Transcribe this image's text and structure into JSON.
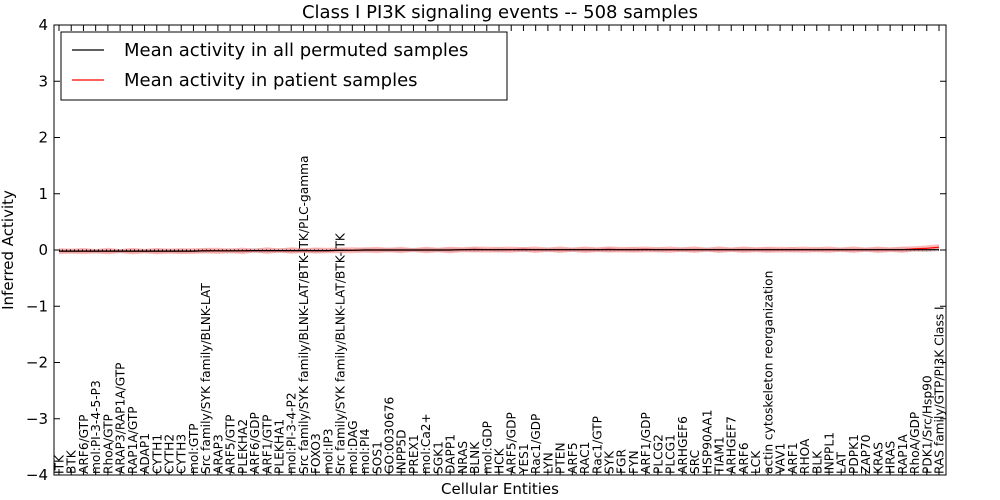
{
  "chart_data": {
    "type": "line",
    "title": "Class I PI3K signaling events -- 508 samples",
    "xlabel": "Cellular Entities",
    "ylabel": "Inferred Activity",
    "ylim": [
      -4,
      4
    ],
    "yticks": [
      "−4",
      "−3",
      "−2",
      "−1",
      "0",
      "1",
      "2",
      "3",
      "4"
    ],
    "ytick_values": [
      -4,
      -3,
      -2,
      -1,
      0,
      1,
      2,
      3,
      4
    ],
    "legend_position": "top-left",
    "categories": [
      "ITK",
      "BTK",
      "ARF6/GTP",
      "mol:PI-3-4-5-P3",
      "RhoA/GTP",
      "ARAP3/RAP1A/GTP",
      "RAP1A/GTP",
      "ADAP1",
      "CYTH1",
      "CYTH2",
      "CYTH3",
      "mol:GTP",
      "Src family/SYK family/BLNK-LAT",
      "ARAP3",
      "ARF5/GTP",
      "PLEKHA2",
      "ARF6/GDP",
      "ARF1/GTP",
      "PLEKHA1",
      "mol:PI-3-4-P2",
      "Src family/SYK family/BLNK-LAT/BTK-ITK/PLC-gamma",
      "FOXO3",
      "mol:IP3",
      "Src family/SYK family/BLNK-LAT/BTK-ITK",
      "mol:DAG",
      "mol:PI4",
      "SOS1",
      "GO:0030676",
      "INPP5D",
      "PREX1",
      "mol:Ca2+",
      "SGK1",
      "DAPP1",
      "NRAS",
      "BLNK",
      "mol:GDP",
      "HCK",
      "ARF5/GDP",
      "YES1",
      "Rac1/GDP",
      "LYN",
      "PTEN",
      "ARF5",
      "RAC1",
      "Rac1/GTP",
      "SYK",
      "FGR",
      "FYN",
      "ARF1/GDP",
      "PLCG2",
      "PLCG1",
      "ARHGEF6",
      "SRC",
      "HSP90AA1",
      "TIAM1",
      "ARHGEF7",
      "ARF6",
      "LCK",
      "actin cytoskeleton reorganization",
      "VAV1",
      "ARF1",
      "RHOA",
      "BLK",
      "INPPL1",
      "LAT",
      "PDPK1",
      "ZAP70",
      "KRAS",
      "HRAS",
      "RAP1A",
      "RhoA/GDP",
      "PDK1/Src/Hsp90",
      "RAS family/GTP/PI3K Class I"
    ],
    "series": [
      {
        "name": "Mean activity in all permuted samples",
        "color": "#000000",
        "values": [
          -0.02,
          -0.02,
          -0.02,
          -0.02,
          -0.02,
          -0.02,
          -0.02,
          -0.02,
          -0.02,
          -0.02,
          -0.02,
          -0.02,
          -0.015,
          -0.015,
          -0.015,
          -0.015,
          -0.01,
          -0.01,
          -0.01,
          -0.01,
          -0.01,
          -0.01,
          -0.01,
          -0.005,
          -0.005,
          0,
          0,
          0,
          0,
          0,
          0,
          0,
          0,
          0.005,
          0.005,
          0.005,
          0.005,
          0.005,
          0.005,
          0.005,
          0.005,
          0.005,
          0.005,
          0.005,
          0.005,
          0.005,
          0.005,
          0.005,
          0.005,
          0.005,
          0.005,
          0.005,
          0.005,
          0.005,
          0.005,
          0.005,
          0.005,
          0.005,
          0.005,
          0.005,
          0.005,
          0.005,
          0.005,
          0.005,
          0.005,
          0.005,
          0.005,
          0.005,
          0.005,
          0.005,
          0.005,
          0.005,
          0.005
        ]
      },
      {
        "name": "Mean activity in patient samples",
        "color": "#ff0000",
        "values": [
          -0.02,
          -0.02,
          -0.02,
          -0.02,
          -0.02,
          -0.02,
          -0.02,
          -0.02,
          -0.02,
          -0.02,
          -0.02,
          -0.02,
          -0.01,
          -0.015,
          -0.015,
          -0.015,
          -0.01,
          -0.01,
          -0.01,
          -0.01,
          -0.01,
          -0.01,
          -0.01,
          -0.005,
          -0.005,
          0,
          0,
          0,
          0,
          0,
          0,
          0,
          0,
          0.005,
          0.01,
          0.005,
          0.005,
          0.005,
          0.01,
          0.005,
          0.005,
          0.005,
          0.005,
          0.005,
          0.005,
          0.01,
          0.005,
          0.005,
          0.01,
          0.005,
          0.005,
          0.005,
          0.005,
          0.005,
          0.005,
          0.005,
          0.005,
          0.005,
          0.005,
          0.005,
          0.005,
          0.005,
          0.005,
          0.005,
          0.005,
          0.005,
          0.005,
          0.005,
          0.005,
          0.005,
          0.02,
          0.03,
          0.05
        ]
      }
    ]
  }
}
